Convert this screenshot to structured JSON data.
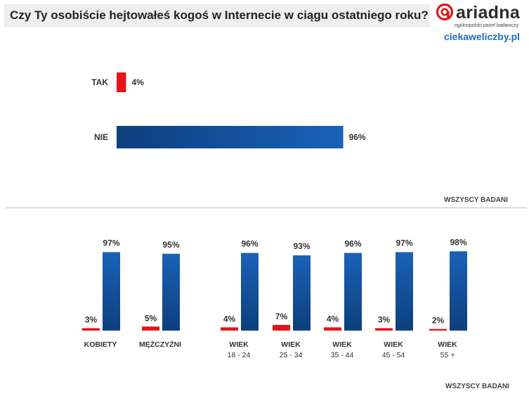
{
  "header": {
    "title": "Czy Ty osobiście hejtowałeś kogoś w Internecie w ciągu ostatniego roku?"
  },
  "logo": {
    "brand": "ariadna",
    "tagline": "ogólnopolski panel badawczy",
    "site": "ciekaweliczby.pl"
  },
  "colors": {
    "yes": "#e3151a",
    "no": "#1a62b8",
    "no_dark": "#0d3f7c"
  },
  "chart_data": [
    {
      "type": "bar",
      "orientation": "horizontal",
      "title": "Czy Ty osobiście hejtowałeś kogoś w Internecie w ciągu ostatniego roku?",
      "categories": [
        "TAK",
        "NIE"
      ],
      "values": [
        4,
        96
      ],
      "unit": "%",
      "value_labels": [
        "4%",
        "96%"
      ],
      "note": "WSZYSCY BADANI"
    },
    {
      "type": "bar",
      "orientation": "vertical",
      "groups": [
        {
          "label": [
            "KOBIETY"
          ],
          "yes": 3,
          "no": 97
        },
        {
          "label": [
            "MĘŻCZYŹNI"
          ],
          "yes": 5,
          "no": 95
        },
        {
          "label": [
            "WIEK",
            "18 - 24"
          ],
          "yes": 4,
          "no": 96
        },
        {
          "label": [
            "WIEK",
            "25 - 34"
          ],
          "yes": 7,
          "no": 93
        },
        {
          "label": [
            "WIEK",
            "35 - 44"
          ],
          "yes": 4,
          "no": 96
        },
        {
          "label": [
            "WIEK",
            "45 - 54"
          ],
          "yes": 3,
          "no": 97
        },
        {
          "label": [
            "WIEK",
            "55 +"
          ],
          "yes": 2,
          "no": 98
        }
      ],
      "series": [
        {
          "name": "TAK",
          "values": [
            3,
            5,
            4,
            7,
            4,
            3,
            2
          ]
        },
        {
          "name": "NIE",
          "values": [
            97,
            95,
            96,
            93,
            96,
            97,
            98
          ]
        }
      ],
      "unit": "%",
      "ylim": [
        0,
        100
      ],
      "note": "WSZYSCY BADANI"
    }
  ]
}
